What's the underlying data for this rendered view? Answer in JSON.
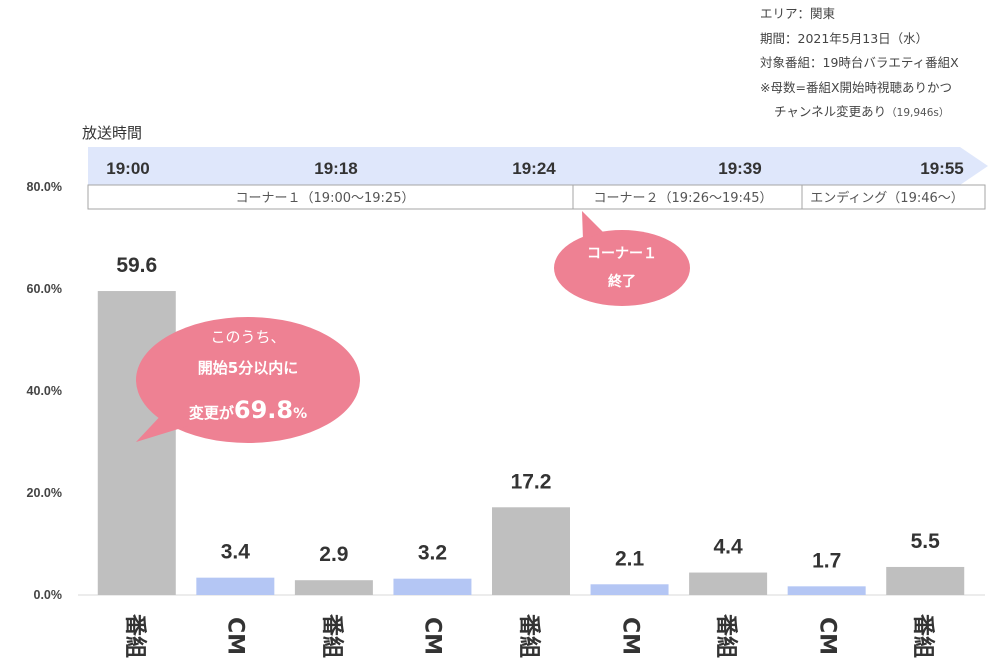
{
  "meta": {
    "area": "エリア：関東",
    "period": "期間：2021年5月13日（水）",
    "target": "対象番組：19時台バラエティ番組X",
    "note1": "※母数=番組X開始時視聴ありかつ",
    "note2_main": "チャンネル変更あり",
    "note2_small": "（19,946s）"
  },
  "timeline": {
    "label": "放送時間",
    "times": [
      "19:00",
      "19:18",
      "19:24",
      "19:39",
      "19:55"
    ],
    "segments": [
      "コーナー１（19:00～19:25）",
      "コーナー２（19:26～19:45）",
      "エンディング（19:46～）"
    ]
  },
  "bubbles": {
    "corner_end_line1": "コーナー１",
    "corner_end_line2": "終了",
    "big_line1": "このうち、",
    "big_line2": "開始5分以内に",
    "big_line3_prefix": "変更が",
    "big_line3_value": "69.8",
    "big_line3_unit": "%"
  },
  "colors": {
    "program_bar": "#bfbfbf",
    "cm_bar": "#b4c6f4",
    "bubble": "#ee8193",
    "arrow": "#dfe7fb"
  },
  "chart_data": {
    "type": "bar",
    "categories": [
      "番組",
      "CM",
      "番組",
      "CM",
      "番組",
      "CM",
      "番組",
      "CM",
      "番組"
    ],
    "values": [
      59.6,
      3.4,
      2.9,
      3.2,
      17.2,
      2.1,
      4.4,
      1.7,
      5.5
    ],
    "value_labels": [
      "59.6",
      "3.4",
      "2.9",
      "3.2",
      "17.2",
      "2.1",
      "4.4",
      "1.7",
      "5.5"
    ],
    "y_ticks": [
      "0.0%",
      "20.0%",
      "40.0%",
      "60.0%",
      "80.0%"
    ],
    "ylim": [
      0,
      80
    ],
    "grid": false
  }
}
